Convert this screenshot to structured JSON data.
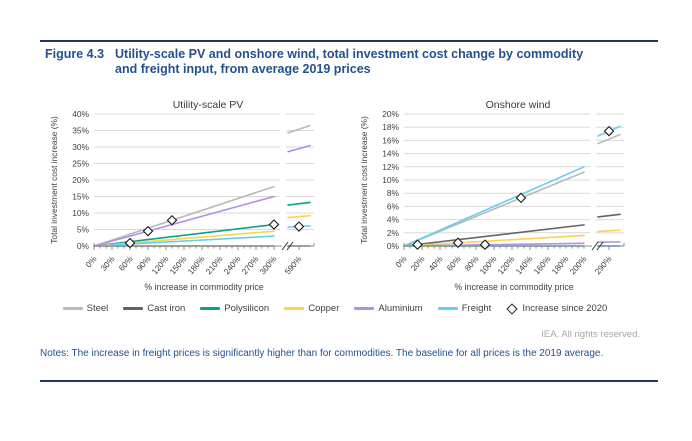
{
  "figure": {
    "label": "Figure 4.3",
    "title": "Utility-scale PV and onshore wind, total investment cost change by commodity and freight input, from average 2019 prices"
  },
  "colors": {
    "navy_text": "#24518e",
    "rule_navy": "#1f3864",
    "steel": "#b9b9b9",
    "cast_iron": "#636363",
    "polysilicon": "#0ca08c",
    "copper": "#fdd34c",
    "aluminium": "#b28fe4",
    "freight": "#66cef2",
    "grid": "#d9d9d9",
    "axis_line": "#8c8c8c",
    "axis_text": "#404040",
    "marker_stroke": "#1a1a1a"
  },
  "legend": {
    "items": [
      {
        "key": "steel",
        "label": "Steel",
        "swatch": "line",
        "color_key": "steel"
      },
      {
        "key": "cast-iron",
        "label": "Cast iron",
        "swatch": "line",
        "color_key": "cast_iron"
      },
      {
        "key": "polysilicon",
        "label": "Polysilicon",
        "swatch": "line",
        "color_key": "polysilicon"
      },
      {
        "key": "copper",
        "label": "Copper",
        "swatch": "line",
        "color_key": "copper"
      },
      {
        "key": "aluminium",
        "label": "Aluminium",
        "swatch": "line",
        "color_key": "aluminium"
      },
      {
        "key": "freight",
        "label": "Freight",
        "swatch": "line",
        "color_key": "freight"
      },
      {
        "key": "increase-since-2020",
        "label": "Increase since 2020",
        "swatch": "diamond",
        "color_key": "marker_stroke"
      }
    ]
  },
  "footer": {
    "rights": "IEA. All rights reserved.",
    "notes": "Notes: The increase in freight prices is significantly higher than for commodities. The baseline for all prices is the 2019 average."
  },
  "chart_data": [
    {
      "type": "line",
      "title": "Utility-scale PV",
      "ylabel": "Total investment cost increase (%)",
      "xlabel": "% increase in commodity price",
      "ylim": [
        0,
        40
      ],
      "ytick_step": 5,
      "x_main_ticks": [
        0,
        30,
        60,
        90,
        120,
        150,
        180,
        210,
        240,
        270,
        300
      ],
      "x_break_tick": 590,
      "axis_break": true,
      "grid": true,
      "series": [
        {
          "name": "Steel",
          "color_key": "steel",
          "value_at_0": 0,
          "value_at_main_end": 18,
          "value_at_break_tick": 35.4
        },
        {
          "name": "Cast iron",
          "color_key": "cast_iron",
          "value_at_0": 0,
          "value_at_main_end": 0,
          "value_at_break_tick": 0
        },
        {
          "name": "Polysilicon",
          "color_key": "polysilicon",
          "value_at_0": 0,
          "value_at_main_end": 6.5,
          "value_at_break_tick": 12.8
        },
        {
          "name": "Copper",
          "color_key": "copper",
          "value_at_0": 0,
          "value_at_main_end": 4.5,
          "value_at_break_tick": 8.9
        },
        {
          "name": "Aluminium",
          "color_key": "aluminium",
          "value_at_0": 0,
          "value_at_main_end": 15,
          "value_at_break_tick": 29.5
        },
        {
          "name": "Freight",
          "color_key": "freight",
          "value_at_0": 0,
          "value_at_main_end": 3,
          "value_at_break_tick": 5.9
        }
      ],
      "markers_increase_since_2020": [
        {
          "name": "Copper",
          "x": 60,
          "y": 0.9
        },
        {
          "name": "Aluminium",
          "x": 90,
          "y": 4.5
        },
        {
          "name": "Steel",
          "x": 130,
          "y": 7.8
        },
        {
          "name": "Polysilicon",
          "x": 300,
          "y": 6.5
        },
        {
          "name": "Freight",
          "x": 590,
          "y": 5.9,
          "on_break_tick": true
        }
      ]
    },
    {
      "type": "line",
      "title": "Onshore wind",
      "ylabel": "Total investment cost increase (%)",
      "xlabel": "% increase in commodity price",
      "ylim": [
        0,
        20
      ],
      "ytick_step": 2,
      "x_main_ticks": [
        0,
        20,
        40,
        60,
        80,
        100,
        120,
        140,
        160,
        180,
        200
      ],
      "x_break_tick": 290,
      "axis_break": true,
      "grid": true,
      "series": [
        {
          "name": "Steel",
          "color_key": "steel",
          "value_at_0": 0,
          "value_at_main_end": 11.2,
          "value_at_break_tick": 16.2
        },
        {
          "name": "Cast iron",
          "color_key": "cast_iron",
          "value_at_0": 0,
          "value_at_main_end": 3.2,
          "value_at_break_tick": 4.6
        },
        {
          "name": "Polysilicon",
          "color_key": "polysilicon",
          "value_at_0": 0,
          "value_at_main_end": 0,
          "value_at_break_tick": 0
        },
        {
          "name": "Copper",
          "color_key": "copper",
          "value_at_0": 0,
          "value_at_main_end": 1.6,
          "value_at_break_tick": 2.3
        },
        {
          "name": "Aluminium",
          "color_key": "aluminium",
          "value_at_0": 0,
          "value_at_main_end": 0.4,
          "value_at_break_tick": 0.6
        },
        {
          "name": "Freight",
          "color_key": "freight",
          "value_at_0": 0,
          "value_at_main_end": 12,
          "value_at_break_tick": 17.4
        }
      ],
      "markers_increase_since_2020": [
        {
          "name": "Cast iron",
          "x": 15,
          "y": 0.2
        },
        {
          "name": "Copper",
          "x": 60,
          "y": 0.5
        },
        {
          "name": "Aluminium",
          "x": 90,
          "y": 0.2
        },
        {
          "name": "Steel",
          "x": 130,
          "y": 7.3
        },
        {
          "name": "Freight",
          "x": 290,
          "y": 17.4,
          "on_break_tick": true
        }
      ]
    }
  ]
}
